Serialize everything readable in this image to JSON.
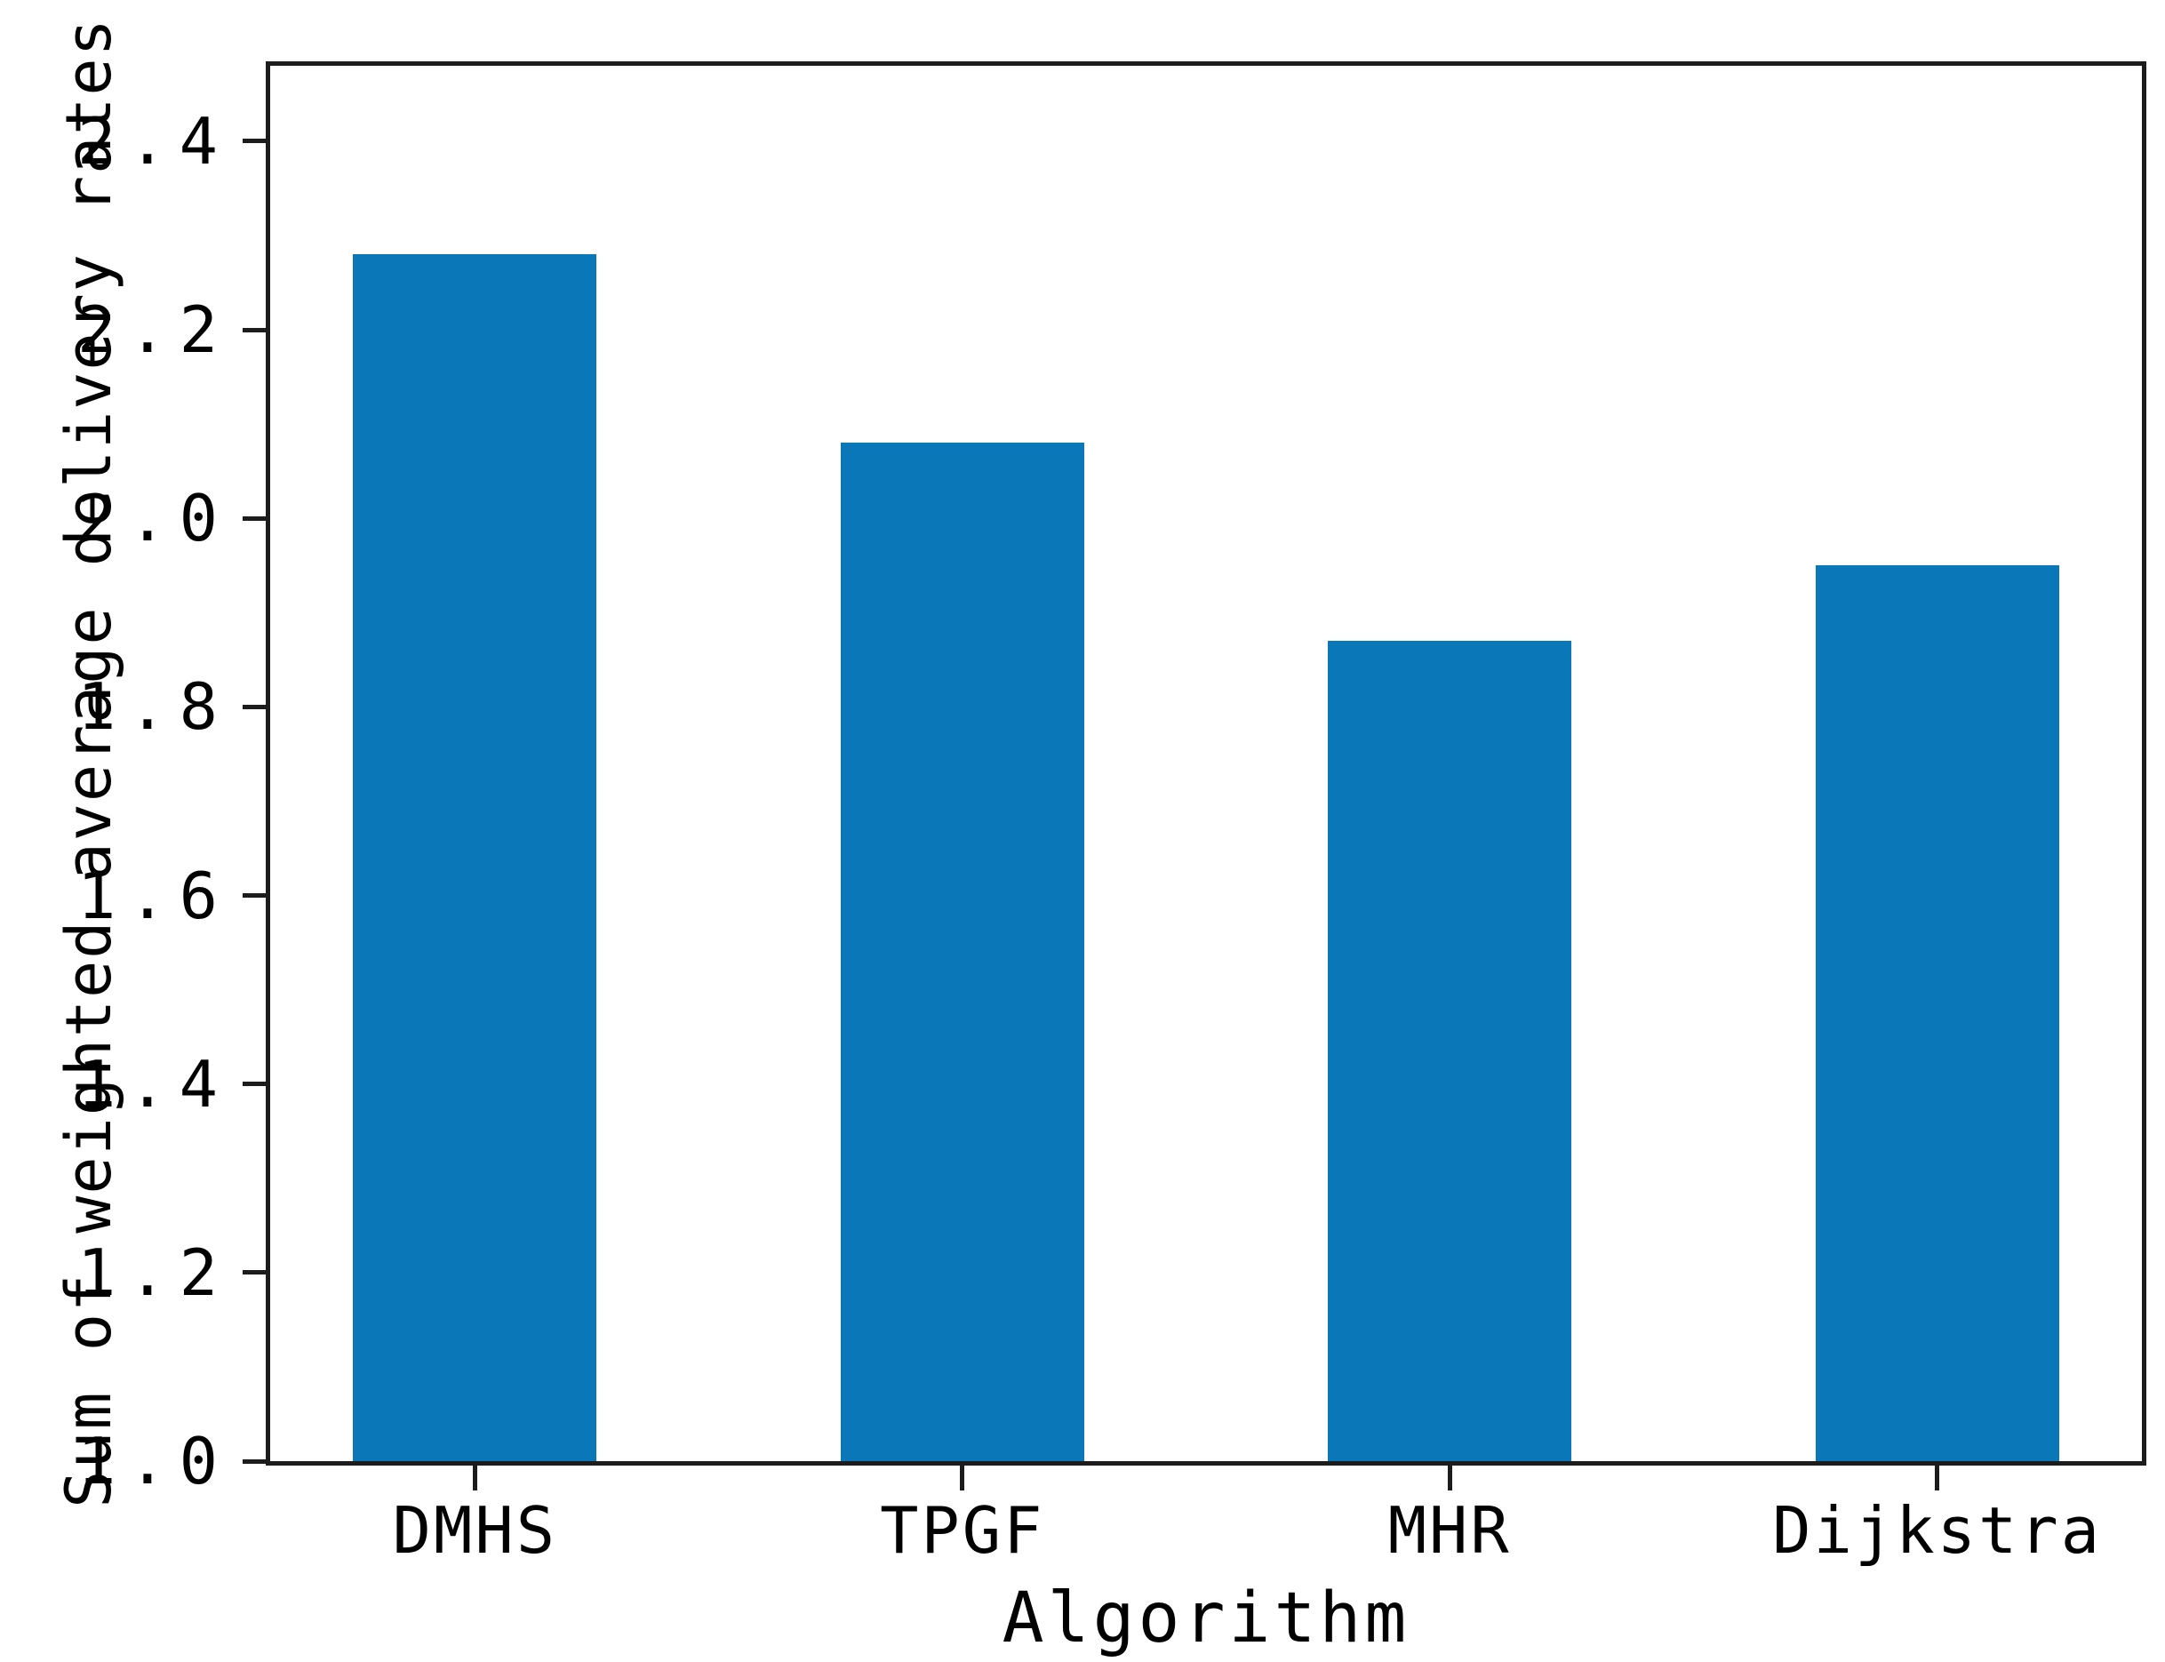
{
  "chart_data": {
    "type": "bar",
    "title": "",
    "xlabel": "Algorithm",
    "ylabel": "Sum of weighted average delivery rates",
    "categories": [
      "DMHS",
      "TPGF",
      "MHR",
      "Dijkstra"
    ],
    "values": [
      2.28,
      2.08,
      1.87,
      1.95
    ],
    "y_tick_values": [
      1.0,
      1.2,
      1.4,
      1.6,
      1.8,
      2.0,
      2.2,
      2.4
    ],
    "y_tick_labels": [
      "1.0",
      "1.2",
      "1.4",
      "1.6",
      "1.8",
      "2.0",
      "2.2",
      "2.4"
    ],
    "ylim": [
      1.0,
      2.48
    ],
    "xlim": [
      -0.42,
      3.42
    ],
    "bar_width_units": 0.5,
    "grid": false,
    "legend_position": "none",
    "bar_color": "#0a78b8",
    "axis_color": "#1c1c1c",
    "text_color": "#000000"
  }
}
